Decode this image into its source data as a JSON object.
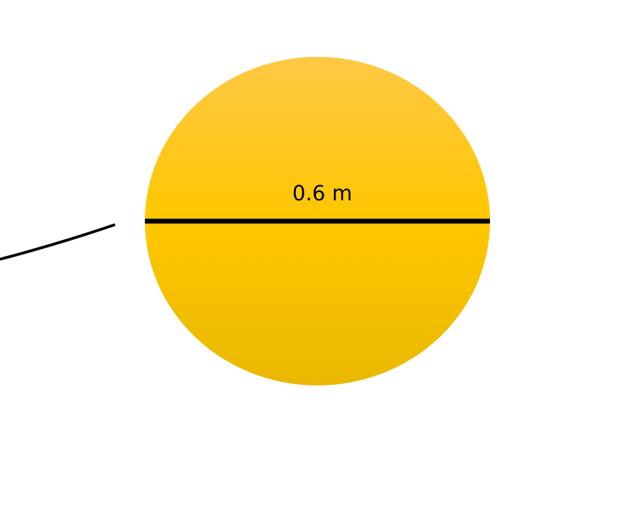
{
  "diagram": {
    "diameter_label": "0.6 m",
    "colors": {
      "circle_top": "#FFC845",
      "circle_mid": "#FFC700",
      "circle_bottom": "#E9B800",
      "line": "#000000",
      "background": "#FFFFFF"
    }
  }
}
